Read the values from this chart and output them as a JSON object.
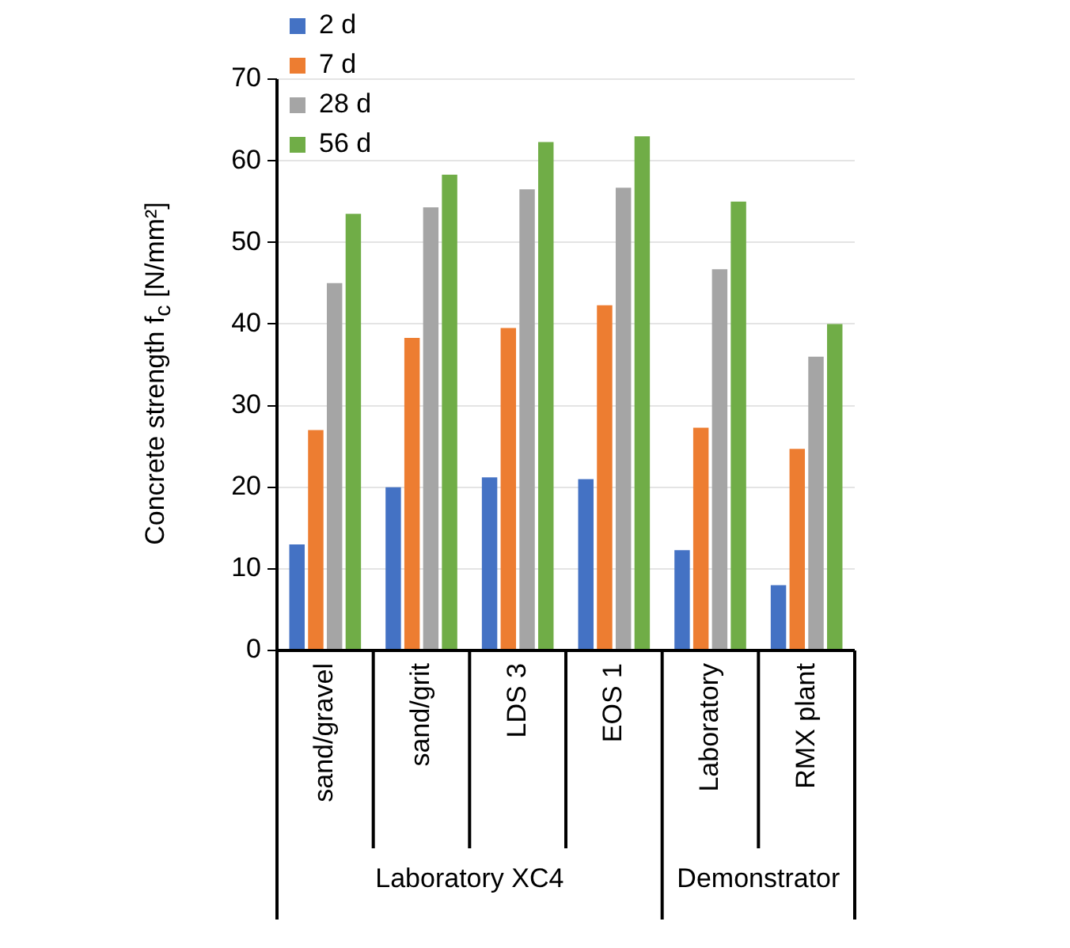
{
  "chart_data": {
    "type": "bar",
    "ylabel": "Concrete strength f$_{c}$ [N/mm²]",
    "categories": [
      "sand/gravel",
      "sand/grit",
      "LDS 3",
      "EOS 1",
      "Laboratory",
      "RMX plant"
    ],
    "series": [
      {
        "name": "2 d",
        "color": "#4472c4",
        "values": [
          13,
          20,
          21.2,
          21,
          12.3,
          8
        ]
      },
      {
        "name": "7 d",
        "color": "#ed7d31",
        "values": [
          27,
          38.3,
          39.5,
          42.3,
          27.3,
          24.7
        ]
      },
      {
        "name": "28 d",
        "color": "#a5a5a5",
        "values": [
          45,
          54.3,
          56.5,
          56.7,
          46.7,
          36
        ]
      },
      {
        "name": "56 d",
        "color": "#70ad47",
        "values": [
          53.5,
          58.3,
          62.3,
          63,
          55,
          40
        ]
      }
    ],
    "ylim": [
      0,
      70
    ],
    "yticks": [
      0,
      10,
      20,
      30,
      40,
      50,
      60,
      70
    ],
    "grid": "y",
    "legend": "top left",
    "annotations": [
      "Laboratory XC4",
      "Demonstrator"
    ]
  }
}
